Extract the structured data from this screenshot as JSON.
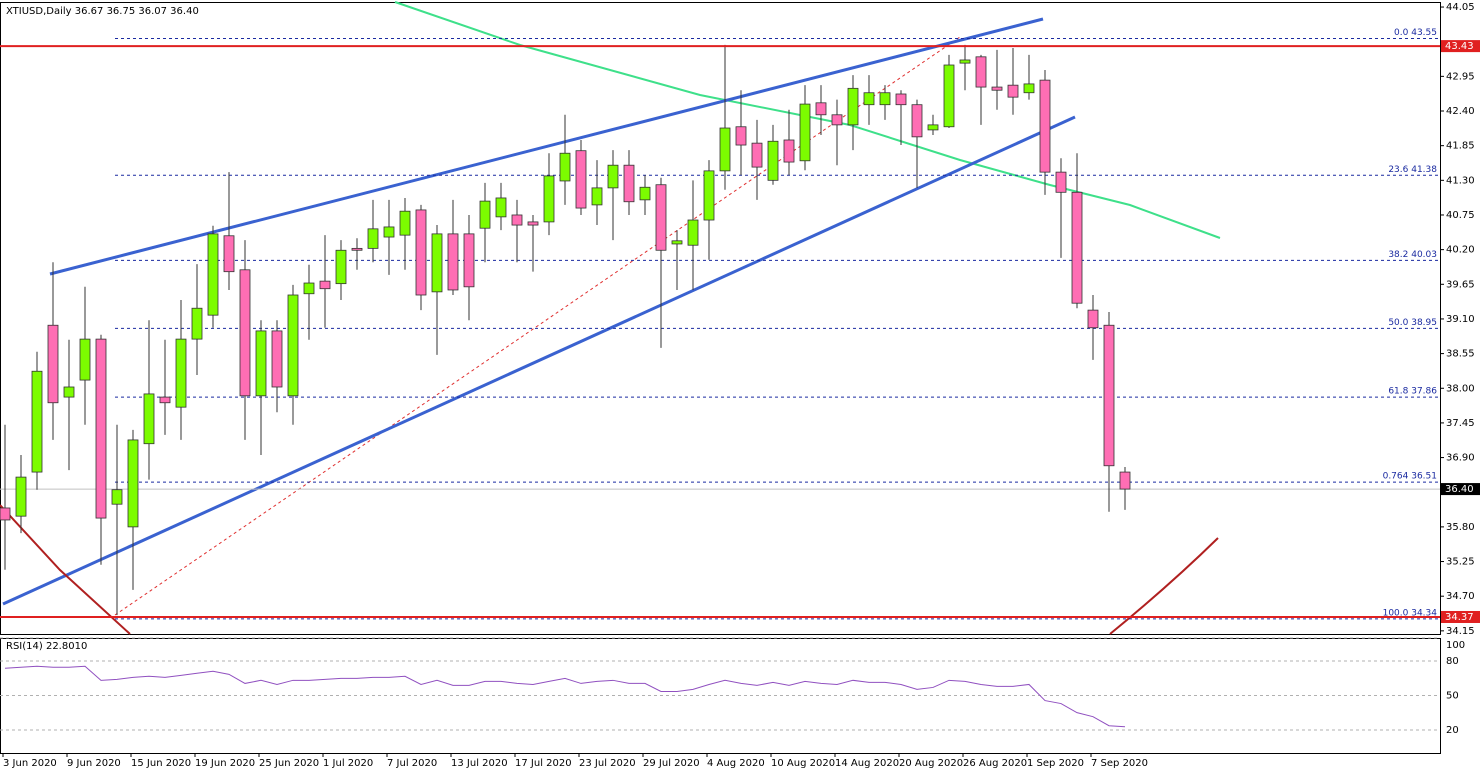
{
  "chart_data": {
    "type": "candlestick",
    "title": "XTIUSD,Daily 36.67 36.75 36.07 36.40",
    "categories": [
      "3 Jun 2020",
      null,
      null,
      null,
      "9 Jun 2020",
      null,
      null,
      null,
      "15 Jun 2020",
      null,
      null,
      null,
      "19 Jun 2020",
      null,
      null,
      null,
      "25 Jun 2020",
      null,
      null,
      null,
      "1 Jul 2020",
      null,
      null,
      null,
      "7 Jul 2020",
      null,
      null,
      null,
      "13 Jul 2020",
      null,
      null,
      null,
      "17 Jul 2020",
      null,
      null,
      null,
      "23 Jul 2020",
      null,
      null,
      null,
      "29 Jul 2020",
      null,
      null,
      null,
      "4 Aug 2020",
      null,
      null,
      null,
      "10 Aug 2020",
      null,
      null,
      null,
      "14 Aug 2020",
      null,
      null,
      null,
      "20 Aug 2020",
      null,
      null,
      null,
      "26 Aug 2020",
      null,
      null,
      null,
      "1 Sep 2020",
      null,
      null,
      null,
      "7 Sep 2020",
      null,
      null
    ],
    "open": [
      36.1,
      35.97,
      36.67,
      39.0,
      37.86,
      38.13,
      38.78,
      36.16,
      35.8,
      37.12,
      37.86,
      37.7,
      38.78,
      39.16,
      40.42,
      39.88,
      37.88,
      38.91,
      37.88,
      39.5,
      39.7,
      39.66,
      40.22,
      40.22,
      40.4,
      40.43,
      40.83,
      39.53,
      40.45,
      40.45,
      40.54,
      40.72,
      40.75,
      40.64,
      40.64,
      41.29,
      41.77,
      40.91,
      41.18,
      41.54,
      40.99,
      41.23,
      40.29,
      40.27,
      40.67,
      41.45,
      42.15,
      41.89,
      41.3,
      41.94,
      41.61,
      42.53,
      42.34,
      42.18,
      42.5,
      42.5,
      42.67,
      42.5,
      42.1,
      42.15,
      43.16,
      43.26,
      42.78,
      42.81,
      42.69,
      42.89,
      41.43,
      41.11,
      39.24,
      39.0,
      36.67
    ],
    "high": [
      37.42,
      36.94,
      38.58,
      40.0,
      38.77,
      39.61,
      38.85,
      37.42,
      37.34,
      39.08,
      38.77,
      39.4,
      39.97,
      40.58,
      41.43,
      40.35,
      39.08,
      39.08,
      39.64,
      39.96,
      40.43,
      40.35,
      40.38,
      40.99,
      40.99,
      41.02,
      40.91,
      40.59,
      40.99,
      40.75,
      41.26,
      41.26,
      40.99,
      40.75,
      41.73,
      42.34,
      41.94,
      41.62,
      41.78,
      41.78,
      41.38,
      41.34,
      40.51,
      41.3,
      41.62,
      43.45,
      42.73,
      42.26,
      42.18,
      42.42,
      42.81,
      42.81,
      42.58,
      42.97,
      42.97,
      42.81,
      42.73,
      42.58,
      42.34,
      43.29,
      43.45,
      43.29,
      43.37,
      43.4,
      43.29,
      43.05,
      41.65,
      41.73,
      39.48,
      39.21,
      36.75
    ],
    "low": [
      35.12,
      35.7,
      36.39,
      37.18,
      36.7,
      37.42,
      35.2,
      34.4,
      34.8,
      36.55,
      37.26,
      37.18,
      38.21,
      38.96,
      39.56,
      37.18,
      36.94,
      37.62,
      37.42,
      38.77,
      38.96,
      39.4,
      39.88,
      40.0,
      39.8,
      39.88,
      39.24,
      38.53,
      39.48,
      39.08,
      40.0,
      40.51,
      40.0,
      39.85,
      40.43,
      40.91,
      40.75,
      40.59,
      40.35,
      40.75,
      40.75,
      38.64,
      39.56,
      39.56,
      40.04,
      41.15,
      41.38,
      40.99,
      41.23,
      41.38,
      41.46,
      42.02,
      41.54,
      41.78,
      42.18,
      42.26,
      41.86,
      41.18,
      42.02,
      42.13,
      42.73,
      42.18,
      42.42,
      42.34,
      42.58,
      41.07,
      40.07,
      39.27,
      38.45,
      36.04,
      36.07
    ],
    "close": [
      35.91,
      36.59,
      38.27,
      37.77,
      38.02,
      38.78,
      35.94,
      36.39,
      37.18,
      37.91,
      37.77,
      38.78,
      39.27,
      40.45,
      39.85,
      37.88,
      38.91,
      38.02,
      39.48,
      39.67,
      39.58,
      40.19,
      40.19,
      40.53,
      40.56,
      40.81,
      39.48,
      40.45,
      39.56,
      39.61,
      40.97,
      41.02,
      40.59,
      40.59,
      41.37,
      41.73,
      40.86,
      41.18,
      41.54,
      40.96,
      41.19,
      40.19,
      40.34,
      40.67,
      41.45,
      42.13,
      41.86,
      41.51,
      41.92,
      41.59,
      42.51,
      42.34,
      42.18,
      42.76,
      42.69,
      42.69,
      42.5,
      41.99,
      42.18,
      43.13,
      43.21,
      42.78,
      42.73,
      42.62,
      42.83,
      41.43,
      41.11,
      39.35,
      38.96,
      36.77,
      36.4
    ],
    "up_color": "#7cfc00",
    "down_color": "#ff6eb4",
    "ylim": [
      34.1,
      44.13
    ],
    "yticks": [
      44.05,
      {
        "value": 42.95,
        "label": "42.95"
      },
      {
        "value": 42.4,
        "label": "42.40"
      },
      41.85,
      {
        "value": 41.3,
        "label": "41.30"
      },
      40.75,
      {
        "value": 40.2,
        "label": "40.20"
      },
      39.65,
      {
        "value": 39.1,
        "label": "39.10"
      },
      38.55,
      {
        "value": 38,
        "label": "38.00"
      },
      37.45,
      {
        "value": 36.9,
        "label": "36.90"
      },
      {
        "value": 35.8,
        "label": "35.80"
      },
      35.25,
      {
        "value": 34.7,
        "label": "34.70"
      },
      34.15
    ],
    "fib_levels": [
      {
        "value": 43.55,
        "label": "0.0 43.55"
      },
      {
        "value": 41.38,
        "label": "23.6 41.38"
      },
      {
        "value": 40.03,
        "label": "38.2 40.03"
      },
      {
        "value": 38.95,
        "label": "50.0 38.95"
      },
      {
        "value": 37.86,
        "label": "61.8 37.86"
      },
      {
        "value": 36.51,
        "label": "0.764 36.51"
      },
      {
        "value": 34.34,
        "label": "100.0 34.34"
      }
    ],
    "hlines": [
      43.43,
      34.37
    ],
    "hline_color": "#e02020",
    "last_price": {
      "value": 36.4,
      "label": "36.40"
    },
    "rsi": {
      "title": "RSI(14) 22.8010",
      "color": "#9050c0",
      "ylim": [
        0,
        100
      ],
      "yticks": [
        100,
        80,
        50,
        20
      ],
      "values": [
        73.7,
        74.6,
        75.4,
        74.6,
        74.6,
        75.4,
        63.2,
        64.0,
        65.8,
        66.7,
        65.8,
        67.5,
        69.3,
        71.1,
        68.4,
        60.5,
        63.2,
        59.6,
        63.2,
        63.2,
        64.0,
        64.9,
        64.9,
        65.8,
        65.8,
        66.7,
        59.6,
        63.2,
        58.8,
        58.8,
        62.3,
        62.3,
        60.5,
        59.6,
        62.3,
        64.9,
        60.5,
        62.3,
        63.2,
        60.5,
        60.5,
        53.5,
        53.5,
        55.3,
        59.6,
        63.2,
        60.5,
        58.8,
        61.4,
        58.8,
        62.3,
        60.5,
        59.6,
        63.2,
        61.4,
        61.4,
        59.6,
        55.3,
        57.0,
        63.2,
        62.3,
        59.6,
        57.9,
        57.9,
        59.6,
        45.6,
        43.0,
        35.1,
        31.6,
        23.7,
        22.8
      ]
    }
  }
}
